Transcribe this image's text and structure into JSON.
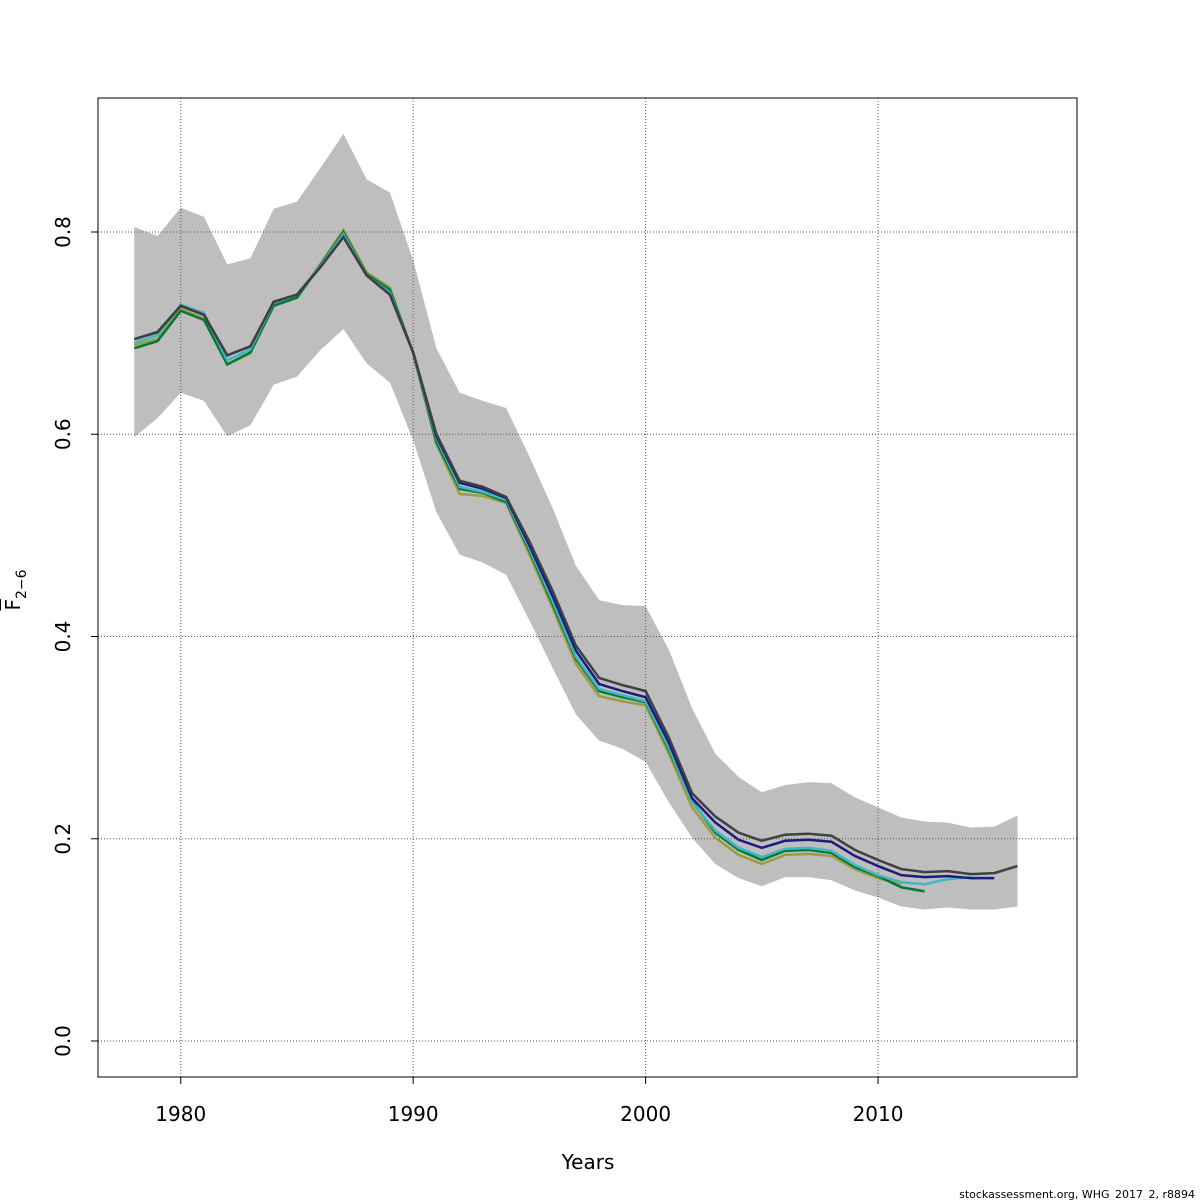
{
  "chart_data": {
    "type": "line",
    "xlabel": "Years",
    "ylabel": {
      "symbol": "F",
      "subscript": "2−6"
    },
    "footer": "stockassessment.org, WHG_2017_2, r8894",
    "x": [
      1978,
      1979,
      1980,
      1981,
      1982,
      1983,
      1984,
      1985,
      1986,
      1987,
      1988,
      1989,
      1990,
      1991,
      1992,
      1993,
      1994,
      1995,
      1996,
      1997,
      1998,
      1999,
      2000,
      2001,
      2002,
      2003,
      2004,
      2005,
      2006,
      2007,
      2008,
      2009,
      2010,
      2011,
      2012,
      2013,
      2014,
      2015,
      2016
    ],
    "xlim": [
      1976.44,
      2018.56
    ],
    "xticks": [
      1980,
      1990,
      2000,
      2010
    ],
    "ylim": [
      -0.0356,
      0.9325
    ],
    "yticks": [
      {
        "value": 0,
        "label": "0.0"
      },
      0.2,
      0.4,
      0.6,
      0.8
    ],
    "grid": true,
    "band": {
      "color": "#bebebe",
      "upper": [
        0.805,
        0.796,
        0.824,
        0.815,
        0.768,
        0.774,
        0.823,
        0.83,
        0.863,
        0.897,
        0.852,
        0.839,
        0.772,
        0.685,
        0.641,
        0.633,
        0.626,
        0.578,
        0.527,
        0.47,
        0.436,
        0.431,
        0.43,
        0.387,
        0.329,
        0.284,
        0.261,
        0.246,
        0.253,
        0.256,
        0.255,
        0.241,
        0.231,
        0.221,
        0.217,
        0.216,
        0.211,
        0.212,
        0.223
      ],
      "lower": [
        0.597,
        0.616,
        0.641,
        0.633,
        0.598,
        0.609,
        0.649,
        0.657,
        0.683,
        0.704,
        0.67,
        0.651,
        0.594,
        0.523,
        0.481,
        0.473,
        0.461,
        0.416,
        0.369,
        0.323,
        0.297,
        0.289,
        0.276,
        0.236,
        0.201,
        0.175,
        0.161,
        0.153,
        0.162,
        0.162,
        0.159,
        0.149,
        0.142,
        0.133,
        0.13,
        0.132,
        0.13,
        0.13,
        0.133
      ]
    },
    "series": [
      {
        "color": "#9c9c3a",
        "values": [
          0.688,
          0.694,
          0.724,
          0.714,
          0.669,
          0.68,
          0.729,
          0.736,
          0.768,
          0.802,
          0.76,
          0.745,
          0.68,
          0.59,
          0.541,
          0.539,
          0.532,
          0.481,
          0.428,
          0.373,
          0.341,
          0.336,
          0.332,
          0.284,
          0.231,
          0.201,
          0.184,
          0.175,
          0.184,
          0.185,
          0.183,
          0.17,
          0.161,
          0.155,
          null,
          null,
          null,
          null,
          null
        ]
      },
      {
        "color": "#007a33",
        "values": [
          0.685,
          0.692,
          0.722,
          0.713,
          0.669,
          0.681,
          0.727,
          0.735,
          0.767,
          0.8,
          0.758,
          0.743,
          0.68,
          0.592,
          0.546,
          0.542,
          0.533,
          0.485,
          0.432,
          0.378,
          0.346,
          0.34,
          0.335,
          0.288,
          0.237,
          0.206,
          0.189,
          0.179,
          0.188,
          0.189,
          0.186,
          0.172,
          0.163,
          0.152,
          0.148,
          null,
          null,
          null,
          null
        ]
      },
      {
        "color": "#41b6c4",
        "values": [
          0.69,
          0.698,
          0.728,
          0.72,
          0.673,
          0.684,
          0.73,
          0.738,
          0.766,
          0.798,
          0.757,
          0.74,
          0.68,
          0.596,
          0.548,
          0.543,
          0.535,
          0.487,
          0.435,
          0.38,
          0.348,
          0.342,
          0.336,
          0.29,
          0.236,
          0.208,
          0.191,
          0.182,
          0.19,
          0.191,
          0.188,
          0.174,
          0.164,
          0.157,
          0.155,
          0.16,
          0.162,
          null,
          null
        ]
      },
      {
        "color": "#1c1c80",
        "values": [
          0.694,
          0.701,
          0.727,
          0.718,
          0.678,
          0.687,
          0.731,
          0.738,
          0.765,
          0.795,
          0.757,
          0.738,
          0.681,
          0.598,
          0.552,
          0.546,
          0.537,
          0.49,
          0.44,
          0.386,
          0.353,
          0.346,
          0.34,
          0.295,
          0.24,
          0.216,
          0.199,
          0.191,
          0.198,
          0.199,
          0.197,
          0.183,
          0.173,
          0.164,
          0.162,
          0.163,
          0.161,
          0.161,
          null
        ]
      },
      {
        "color": "#404040",
        "values": [
          0.694,
          0.701,
          0.727,
          0.718,
          0.678,
          0.687,
          0.731,
          0.738,
          0.765,
          0.795,
          0.757,
          0.738,
          0.681,
          0.6,
          0.554,
          0.548,
          0.538,
          0.494,
          0.445,
          0.391,
          0.359,
          0.352,
          0.346,
          0.3,
          0.245,
          0.222,
          0.206,
          0.198,
          0.204,
          0.205,
          0.203,
          0.189,
          0.179,
          0.17,
          0.167,
          0.168,
          0.165,
          0.166,
          0.173
        ]
      }
    ]
  }
}
